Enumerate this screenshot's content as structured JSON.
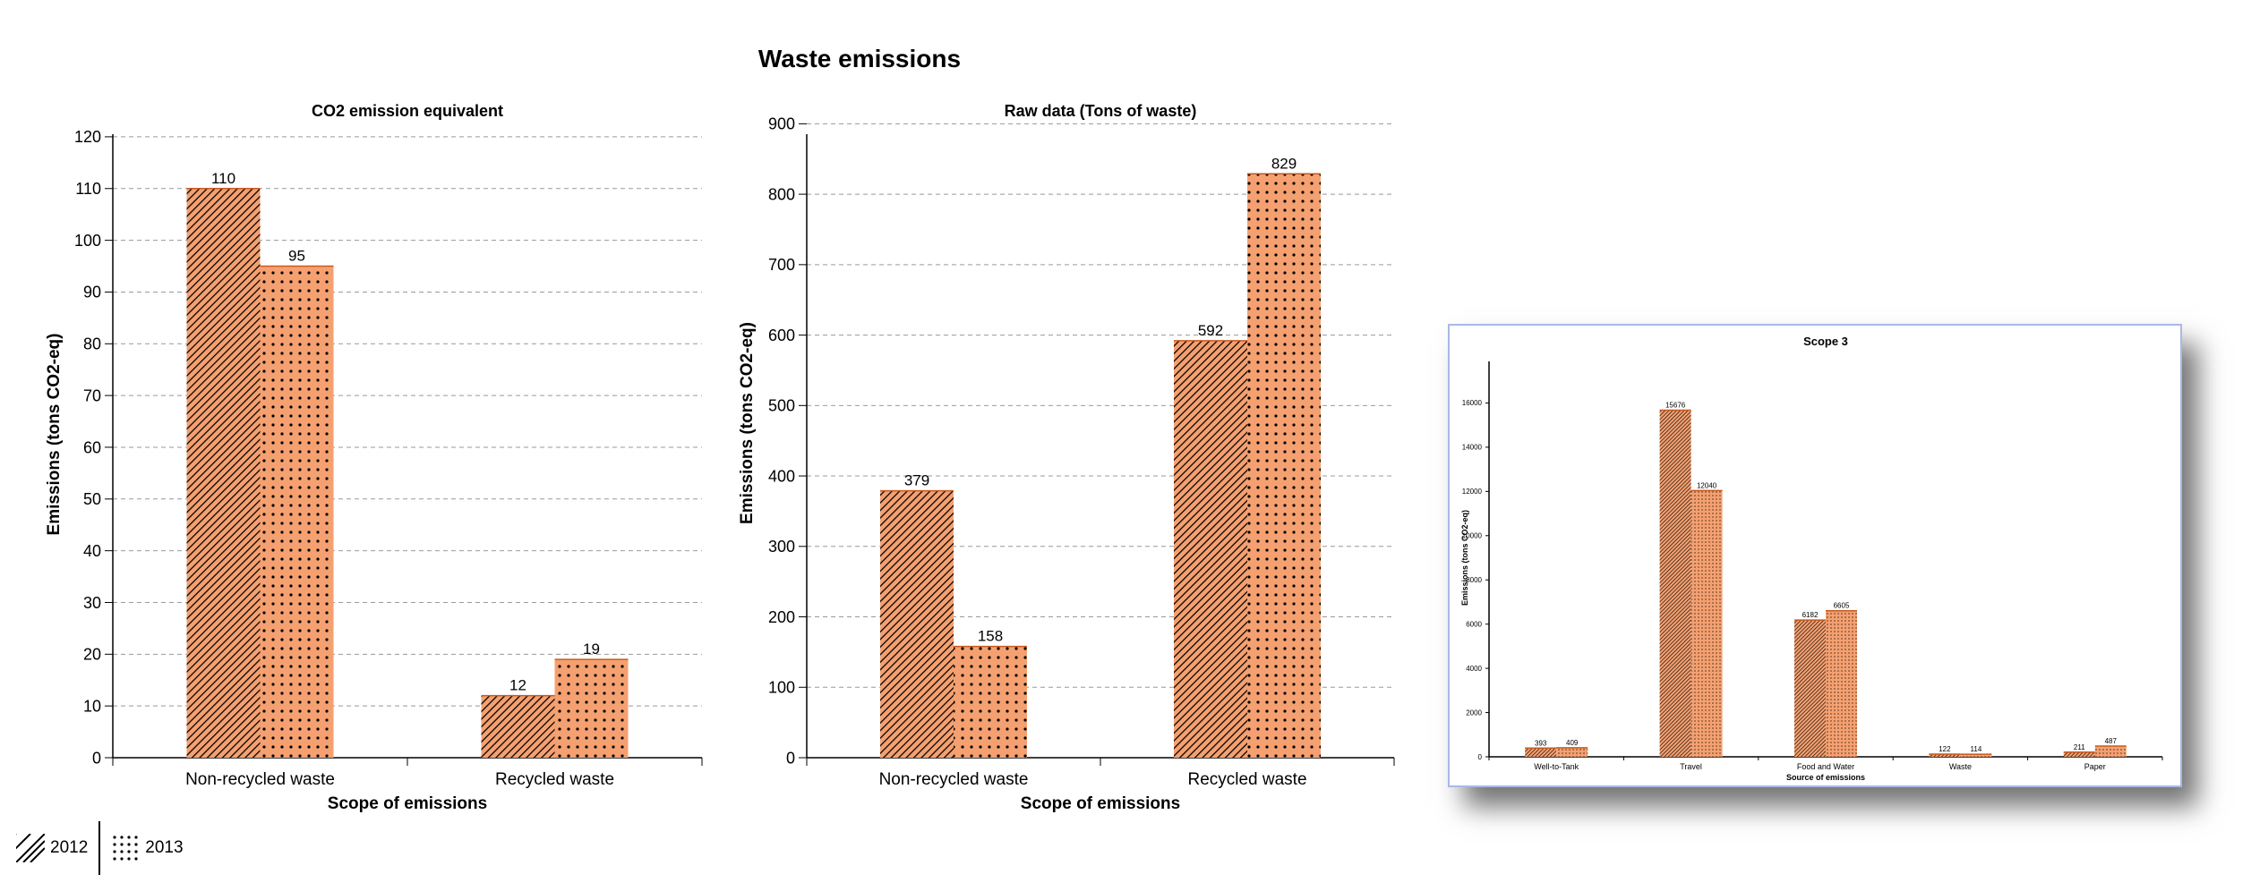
{
  "page": {
    "title": "Waste emissions"
  },
  "legend": {
    "items": [
      {
        "label": "2012",
        "pattern": "diagonal-hatch"
      },
      {
        "label": "2013",
        "pattern": "dots"
      }
    ]
  },
  "colors": {
    "bar_fill": "#f5a070",
    "bar_pattern": "#000000",
    "grid": "#999999",
    "inset_border": "#aab8e8"
  },
  "chart_data": [
    {
      "type": "bar",
      "title": "CO2 emission equivalent",
      "xlabel": "Scope of emissions",
      "ylabel": "Emissions (tons CO2-eq)",
      "categories": [
        "Non-recycled waste",
        "Recycled waste"
      ],
      "series": [
        {
          "name": "2012",
          "values": [
            110,
            12
          ]
        },
        {
          "name": "2013",
          "values": [
            95,
            19
          ]
        }
      ],
      "data_labels": [
        [
          "110",
          "12"
        ],
        [
          "95",
          "19"
        ]
      ],
      "ylim": [
        0,
        125
      ],
      "yticks": [
        0,
        10,
        20,
        30,
        40,
        50,
        60,
        70,
        80,
        90,
        100,
        110,
        120
      ],
      "grid": true
    },
    {
      "type": "bar",
      "title": "Raw data (Tons of waste)",
      "xlabel": "Scope of emissions",
      "ylabel": "Emissions (tons CO2-eq)",
      "categories": [
        "Non-recycled waste",
        "Recycled waste"
      ],
      "series": [
        {
          "name": "2012",
          "values": [
            379,
            592
          ]
        },
        {
          "name": "2013",
          "values": [
            158,
            829
          ]
        }
      ],
      "data_labels": [
        [
          "379",
          "592"
        ],
        [
          "158",
          "829"
        ]
      ],
      "ylim": [
        0,
        950
      ],
      "yticks": [
        0,
        100,
        200,
        300,
        400,
        500,
        600,
        700,
        800,
        900
      ],
      "grid": true
    },
    {
      "type": "bar",
      "title": "Scope 3",
      "xlabel": "Source of emissions",
      "ylabel": "Emissions (tons CO2-eq)",
      "categories": [
        "Well-to-Tank",
        "Travel",
        "Food and Water",
        "Waste",
        "Paper"
      ],
      "series": [
        {
          "name": "2012",
          "values": [
            393,
            15676,
            6182,
            122,
            211
          ]
        },
        {
          "name": "2013",
          "values": [
            409,
            12040,
            6605,
            114,
            487
          ]
        }
      ],
      "data_labels": [
        [
          "393",
          "15676",
          "6182",
          "122",
          "211"
        ],
        [
          "409",
          "12040",
          "6605",
          "114",
          "487"
        ]
      ],
      "ylim": [
        0,
        18000
      ],
      "yticks": [
        0,
        2000,
        4000,
        6000,
        8000,
        10000,
        12000,
        14000,
        16000
      ],
      "grid": false
    }
  ]
}
